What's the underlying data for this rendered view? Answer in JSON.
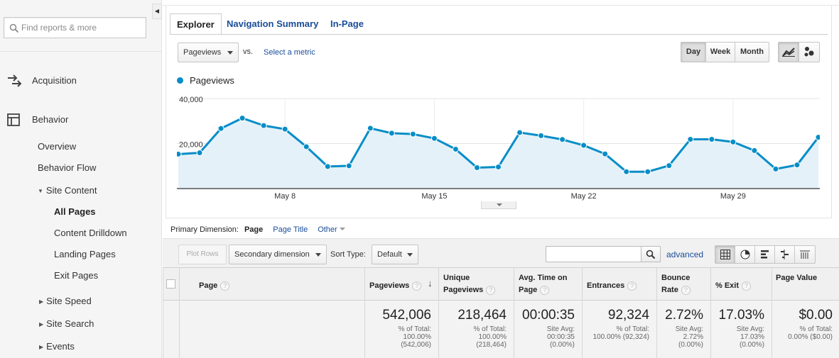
{
  "sidebar": {
    "search_placeholder": "Find reports & more",
    "collapse_icon": "◀",
    "acquisition": "Acquisition",
    "behavior": "Behavior",
    "overview": "Overview",
    "behavior_flow": "Behavior Flow",
    "site_content": "Site Content",
    "all_pages": "All Pages",
    "content_drilldown": "Content Drilldown",
    "landing_pages": "Landing Pages",
    "exit_pages": "Exit Pages",
    "site_speed": "Site Speed",
    "site_search": "Site Search",
    "events": "Events",
    "expanded_glyph": "▼",
    "collapsed_glyph": "▶"
  },
  "tabs": {
    "explorer": "Explorer",
    "nav_summary": "Navigation Summary",
    "in_page": "In-Page"
  },
  "controls": {
    "metric": "Pageviews",
    "vs": "vs.",
    "select_metric": "Select a metric",
    "day": "Day",
    "week": "Week",
    "month": "Month"
  },
  "chart_data": {
    "type": "line",
    "series": [
      {
        "name": "Pageviews",
        "color": "#058dc7",
        "values": [
          15300,
          15900,
          26700,
          31300,
          28000,
          26400,
          18600,
          9800,
          10100,
          26800,
          24600,
          24200,
          22300,
          17500,
          9300,
          9600,
          24900,
          23500,
          21800,
          19200,
          15400,
          7500,
          7500,
          10200,
          21900,
          21900,
          20700,
          16900,
          8700,
          10500,
          22800
        ]
      }
    ],
    "x_tick_labels": [
      "May 8",
      "May 15",
      "May 22",
      "May 29"
    ],
    "x_tick_index": [
      5,
      12,
      19,
      26
    ],
    "y_tick_labels": [
      "40,000",
      "20,000"
    ],
    "y_tick_values": [
      40000,
      20000
    ],
    "ylim": [
      0,
      40000
    ],
    "grid": true
  },
  "primary": {
    "label": "Primary Dimension:",
    "page": "Page",
    "page_title": "Page Title",
    "other": "Other"
  },
  "toolbar": {
    "plot_rows": "Plot Rows",
    "secondary_dimension": "Secondary dimension",
    "sort_type_label": "Sort Type:",
    "sort_default": "Default",
    "search_value": "",
    "advanced": "advanced"
  },
  "table": {
    "headers": {
      "page": "Page",
      "pageviews": "Pageviews",
      "unique1": "Unique",
      "unique2": "Pageviews",
      "avg1": "Avg. Time on",
      "avg2": "Page",
      "entrances": "Entrances",
      "bounce1": "Bounce",
      "bounce2": "Rate",
      "exit": "% Exit",
      "page_value": "Page Value",
      "help": "?",
      "sort_arrow": "↓"
    },
    "totals": {
      "pageviews": {
        "value": "542,006",
        "l1": "% of Total:",
        "l2": "100.00%",
        "l3": "(542,006)"
      },
      "unique": {
        "value": "218,464",
        "l1": "% of Total:",
        "l2": "100.00%",
        "l3": "(218,464)"
      },
      "avg_time": {
        "value": "00:00:35",
        "l1": "Site Avg:",
        "l2": "00:00:35",
        "l3": "(0.00%)"
      },
      "entrances": {
        "value": "92,324",
        "l1": "% of Total:",
        "l2": "100.00% (92,324)"
      },
      "bounce": {
        "value": "2.72%",
        "l1": "Site Avg:",
        "l2": "2.72%",
        "l3": "(0.00%)"
      },
      "exit": {
        "value": "17.03%",
        "l1": "Site Avg:",
        "l2": "17.03%",
        "l3": "(0.00%)"
      },
      "page_value": {
        "value": "$0.00",
        "l1": "% of Total:",
        "l2": "0.00% ($0.00)"
      }
    }
  }
}
